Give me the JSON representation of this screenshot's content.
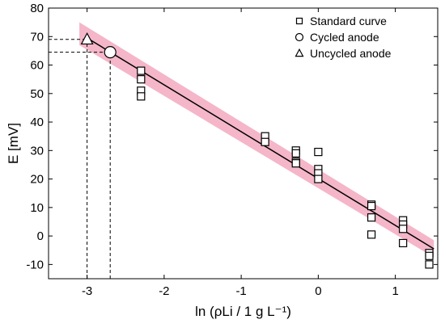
{
  "chart_data": {
    "type": "scatter",
    "title": "",
    "xlabel": "ln (ρLi / 1 g L⁻¹)",
    "ylabel": "E [mV]",
    "xlim": [
      -3.5,
      1.55
    ],
    "ylim": [
      -15,
      80
    ],
    "xticks": [
      -3,
      -2,
      -1,
      0,
      1
    ],
    "xtick_labels": [
      "-3",
      "-2",
      "-1",
      "0",
      "1"
    ],
    "yticks": [
      -10,
      0,
      10,
      20,
      30,
      40,
      50,
      60,
      70,
      80
    ],
    "ytick_labels": [
      "-10",
      "0",
      "10",
      "20",
      "30",
      "40",
      "50",
      "60",
      "70",
      "80"
    ],
    "grid": false,
    "legend_position": "top-right",
    "series": [
      {
        "name": "Standard curve",
        "marker": "square",
        "points": [
          [
            -2.3,
            58
          ],
          [
            -2.3,
            55
          ],
          [
            -2.3,
            51
          ],
          [
            -2.3,
            49
          ],
          [
            -0.69,
            35
          ],
          [
            -0.69,
            33
          ],
          [
            -0.29,
            30
          ],
          [
            -0.29,
            29
          ],
          [
            -0.29,
            26
          ],
          [
            -0.29,
            25.5
          ],
          [
            0,
            29.5
          ],
          [
            0,
            23.5
          ],
          [
            0,
            22
          ],
          [
            0,
            20
          ],
          [
            0.69,
            11
          ],
          [
            0.69,
            10.5
          ],
          [
            0.69,
            6.5
          ],
          [
            0.69,
            0.5
          ],
          [
            1.1,
            5.5
          ],
          [
            1.1,
            4
          ],
          [
            1.1,
            2.5
          ],
          [
            1.1,
            -2.5
          ],
          [
            1.44,
            -6
          ],
          [
            1.44,
            -7
          ],
          [
            1.44,
            -10
          ]
        ]
      },
      {
        "name": "Cycled anode",
        "marker": "circle",
        "points": [
          [
            -2.7,
            64.5
          ]
        ]
      },
      {
        "name": "Uncycled anode",
        "marker": "triangle",
        "points": [
          [
            -3.0,
            69
          ]
        ]
      }
    ],
    "fit_line": {
      "x": [
        -3.0,
        1.5
      ],
      "y": [
        69.5,
        -4.5
      ]
    },
    "confidence_band": {
      "x": [
        -3.1,
        1.5
      ],
      "upper": [
        75,
        -1.5
      ],
      "lower": [
        67,
        -7.5
      ]
    },
    "reference_lines": [
      {
        "series": "Uncycled anode",
        "x": -3.0,
        "y": 69
      },
      {
        "series": "Cycled anode",
        "x": -2.7,
        "y": 64.5
      }
    ],
    "colors": {
      "band": "#f4b6c8",
      "line": "#000000",
      "marker_fill": "#ffffff"
    }
  }
}
